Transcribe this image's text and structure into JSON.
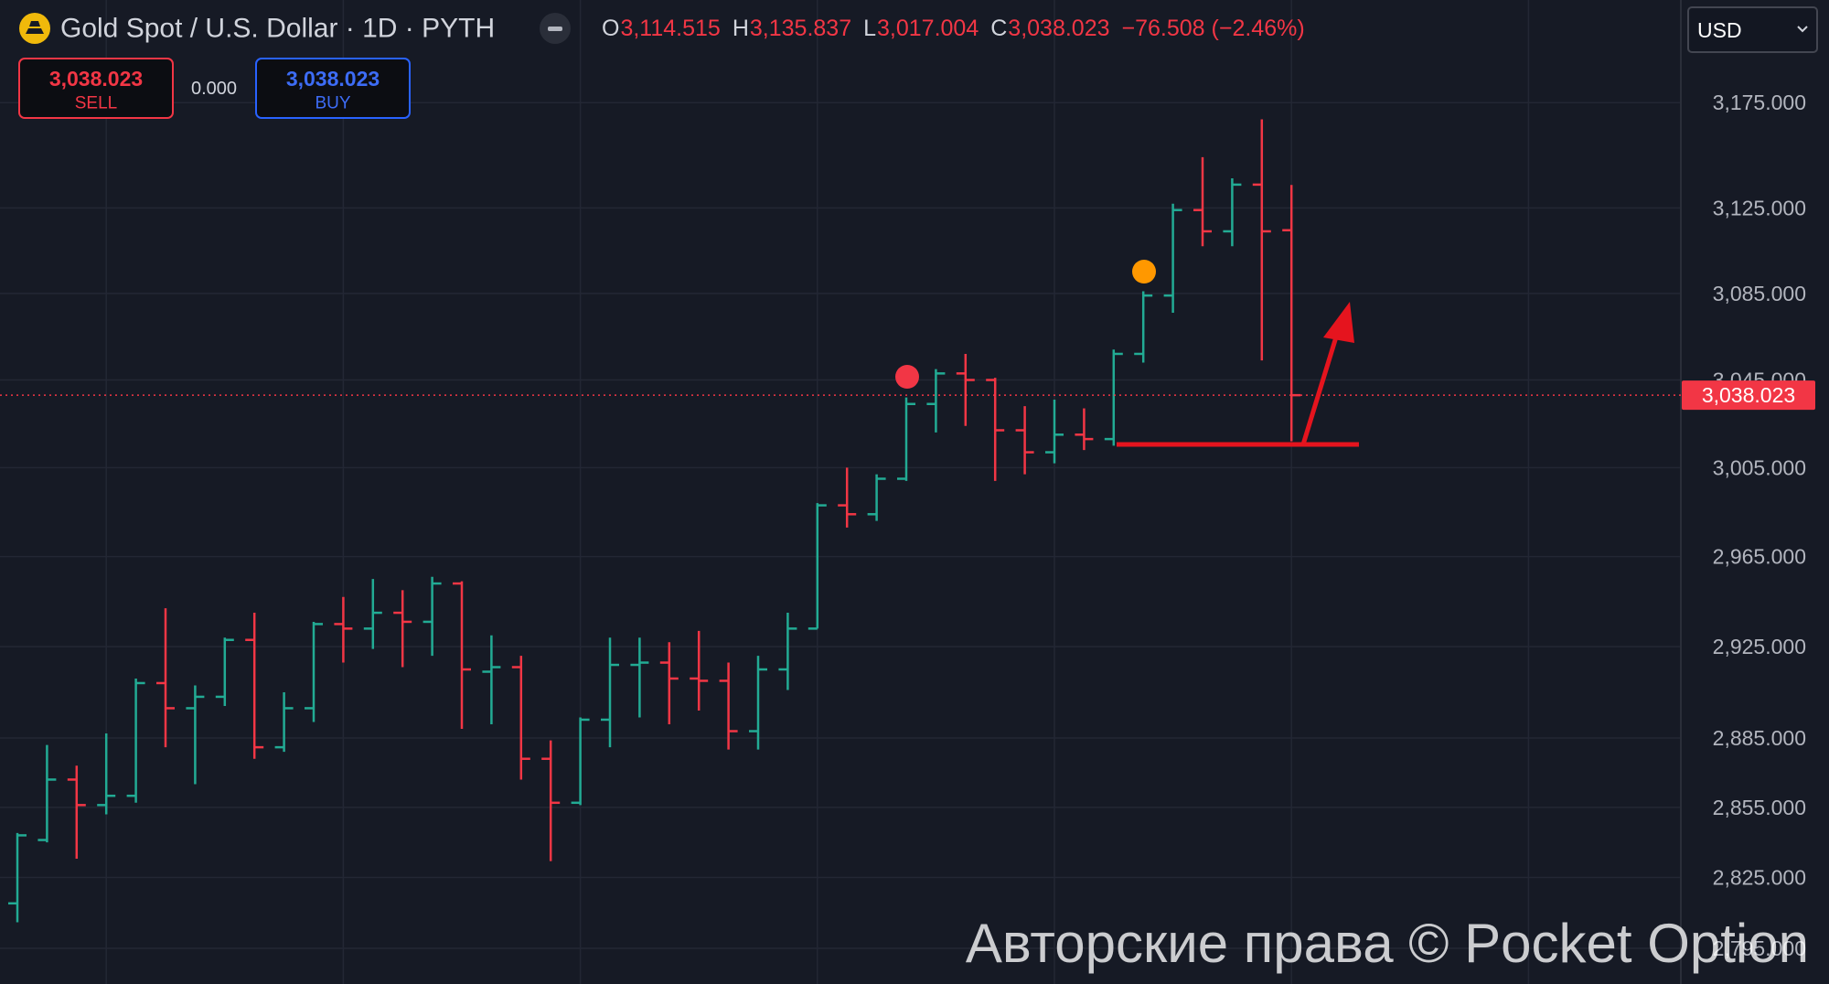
{
  "header": {
    "title": "Gold Spot / U.S. Dollar · 1D · PYTH",
    "ohlc": [
      {
        "label": "O",
        "value": "3,114.515"
      },
      {
        "label": "H",
        "value": "3,135.837"
      },
      {
        "label": "L",
        "value": "3,017.004"
      },
      {
        "label": "C",
        "value": "3,038.023"
      }
    ],
    "change": "−76.508 (−2.46%)",
    "sell": {
      "price": "3,038.023",
      "label": "SELL"
    },
    "spread": "0.000",
    "buy": {
      "price": "3,038.023",
      "label": "BUY"
    },
    "currency": "USD"
  },
  "chart_data": {
    "type": "ohlc",
    "log_scale": true,
    "grid": true,
    "up_color": "#22ab94",
    "down_color": "#f23645",
    "open": [
      2814,
      2841,
      2867,
      2856,
      2860,
      2909,
      2898,
      2903,
      2928,
      2881,
      2898,
      2935,
      2933,
      2940,
      2936,
      2953,
      2914,
      2916,
      2876,
      2857,
      2893,
      2917,
      2918,
      2911,
      2910,
      2888,
      2915,
      2933,
      2988,
      2984,
      3000,
      3034,
      3048,
      3045,
      3022,
      3012,
      3020,
      3018,
      3057,
      3084,
      3124,
      3114,
      3136,
      3114.515
    ],
    "high": [
      2844,
      2882,
      2873,
      2887,
      2911,
      2942,
      2908,
      2929,
      2940,
      2905,
      2936,
      2947,
      2955,
      2950,
      2956,
      2954,
      2930,
      2921,
      2884,
      2894,
      2929,
      2929,
      2927,
      2932,
      2918,
      2921,
      2940,
      2989,
      3005,
      3002,
      3037,
      3050,
      3057,
      3046,
      3033,
      3036,
      3032,
      3059,
      3086,
      3127,
      3149,
      3139,
      3167,
      3135.837
    ],
    "low": [
      2806,
      2840,
      2833,
      2852,
      2857,
      2881,
      2865,
      2899,
      2876,
      2879,
      2892,
      2918,
      2924,
      2916,
      2921,
      2889,
      2891,
      2867,
      2832,
      2856,
      2881,
      2894,
      2891,
      2897,
      2880,
      2880,
      2906,
      2933,
      2978,
      2981,
      2999,
      3021,
      3024,
      2999,
      3002,
      3007,
      3013,
      3015,
      3053,
      3076,
      3107,
      3107,
      3054,
      3017.004
    ],
    "close": [
      2843,
      2867,
      2856,
      2860,
      2909,
      2898,
      2903,
      2928,
      2881,
      2898,
      2935,
      2933,
      2940,
      2936,
      2953,
      2915,
      2916,
      2876,
      2857,
      2893,
      2917,
      2918,
      2911,
      2910,
      2888,
      2915,
      2933,
      2988,
      2984,
      3000,
      3034,
      3048,
      3045,
      3022,
      3012,
      3020,
      3018,
      3057,
      3084,
      3124,
      3114,
      3136,
      3114,
      3038.023
    ],
    "ylim": [
      2780,
      3224.5
    ],
    "yticks": [
      {
        "value": 3175,
        "label": "3,175.000"
      },
      {
        "value": 3125,
        "label": "3,125.000"
      },
      {
        "value": 3085,
        "label": "3,085.000"
      },
      {
        "value": 3045,
        "label": "3,045.000"
      },
      {
        "value": 3005,
        "label": "3,005.000"
      },
      {
        "value": 2965,
        "label": "2,965.000"
      },
      {
        "value": 2925,
        "label": "2,925.000"
      },
      {
        "value": 2885,
        "label": "2,885.000"
      },
      {
        "value": 2855,
        "label": "2,855.000"
      },
      {
        "value": 2825,
        "label": "2,825.000"
      },
      {
        "value": 2795,
        "label": "2,795.000"
      }
    ],
    "last_price_label": "3,038.023"
  },
  "watermark": "Авторские права © Pocket Option"
}
